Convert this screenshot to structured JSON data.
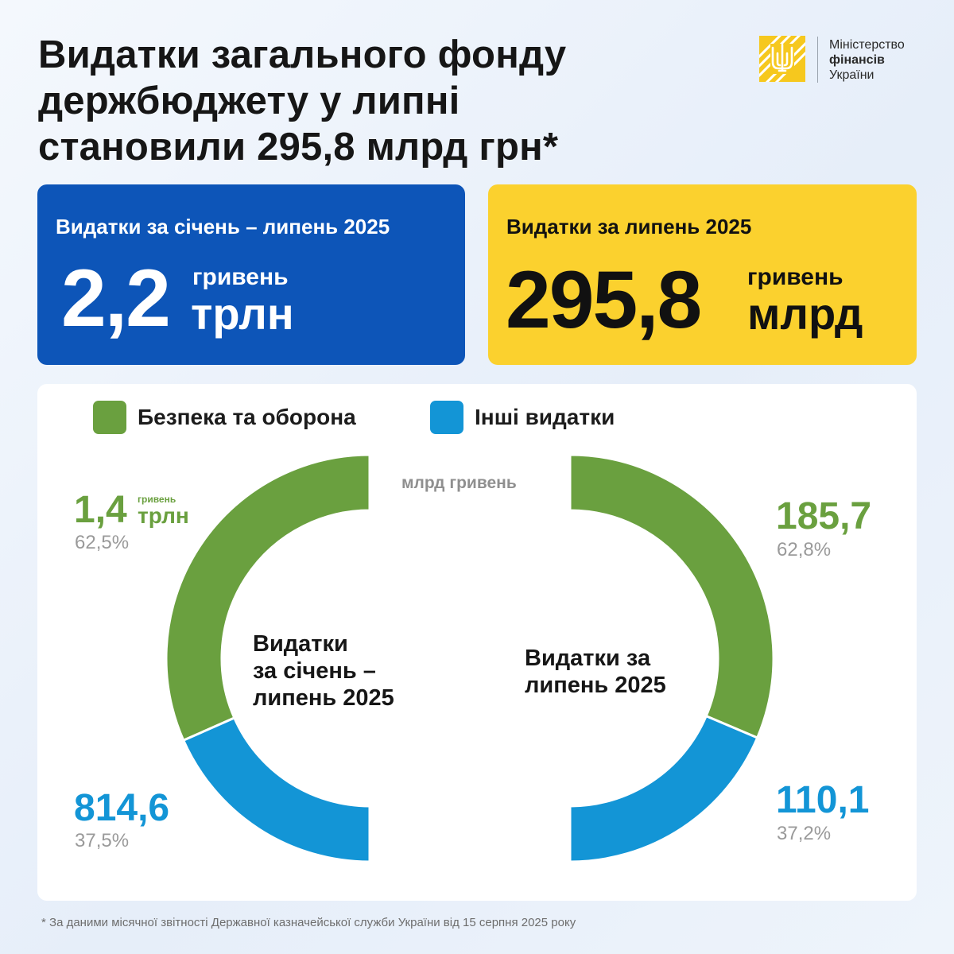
{
  "title": {
    "line1": "Видатки загального фонду",
    "line2": "держбюджету у липні",
    "line3": "становили 295,8 млрд грн*"
  },
  "logo": {
    "line1": "Міністерство",
    "line2": "фінансів",
    "line3": "України"
  },
  "card_ytd": {
    "label": "Видатки за січень – липень 2025",
    "value": "2,2",
    "unit_small": "гривень",
    "unit_large": "трлн",
    "color": "#0d55b8"
  },
  "card_month": {
    "label": "Видатки за липень 2025",
    "value": "295,8",
    "unit_small": "гривень",
    "unit_large": "млрд",
    "color": "#fbd12e"
  },
  "legend": {
    "defense": "Безпека та оборона",
    "other": "Інші видатки"
  },
  "unit_note": "млрд гривень",
  "left_donut": {
    "center_line1": "Видатки",
    "center_line2": "за січень –",
    "center_line3": "липень 2025",
    "defense_value": "1,4",
    "defense_unit_small": "гривень",
    "defense_unit_large": "трлн",
    "defense_pct": "62,5%",
    "other_value": "814,6",
    "other_pct": "37,5%"
  },
  "right_donut": {
    "center_line1": "Видатки за",
    "center_line2": "липень 2025",
    "defense_value": "185,7",
    "defense_pct": "62,8%",
    "other_value": "110,1",
    "other_pct": "37,2%"
  },
  "footnote": "* За даними місячної звітності Державної казначейської служби України від 15 серпня 2025 року",
  "chart_data": [
    {
      "type": "pie",
      "style": "half-donut-left",
      "categories": [
        "Безпека та оборона",
        "Інші видатки"
      ],
      "values": [
        1400,
        814.6
      ],
      "percent": [
        62.5,
        37.5
      ],
      "colors": [
        "#6aa03f",
        "#1395d6"
      ]
    },
    {
      "type": "pie",
      "style": "half-donut-right",
      "categories": [
        "Безпека та оборона",
        "Інші видатки"
      ],
      "values": [
        185.7,
        110.1
      ],
      "percent": [
        62.8,
        37.2
      ],
      "colors": [
        "#6aa03f",
        "#1395d6"
      ]
    }
  ]
}
